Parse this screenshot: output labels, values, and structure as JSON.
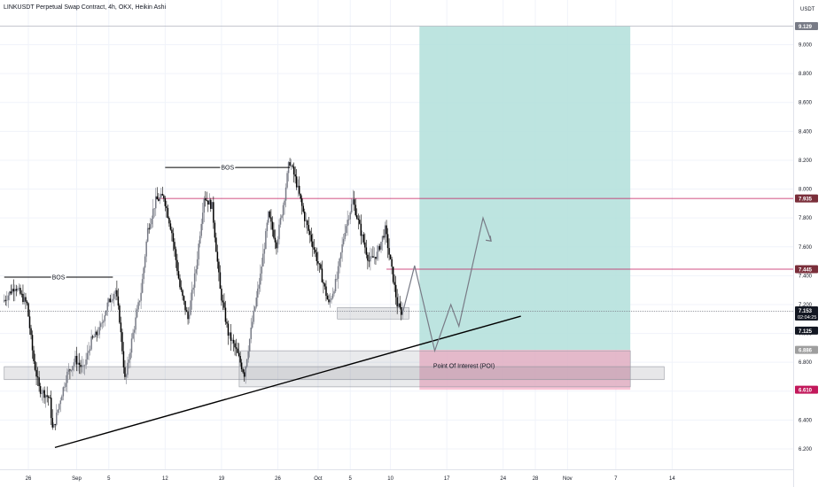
{
  "header": {
    "title": "LINKUSDT Perpetual Swap Contract, 4h, OKX, Heikin Ashi",
    "currency": "USDT"
  },
  "chart_data": {
    "type": "candlestick",
    "symbol": "LINKUSDT Perpetual Swap Contract",
    "interval": "4h",
    "exchange": "OKX",
    "candle_style": "Heikin Ashi",
    "ylim": [
      6.12,
      9.2
    ],
    "y_ticks": [
      "9.000",
      "8.800",
      "8.600",
      "8.400",
      "8.200",
      "8.000",
      "7.800",
      "7.600",
      "7.400",
      "7.200",
      "7.000",
      "6.800",
      "6.600",
      "6.400",
      "6.200"
    ],
    "x_ticks": [
      {
        "label": "26",
        "day": 0
      },
      {
        "label": "Sep",
        "day": 6
      },
      {
        "label": "5",
        "day": 10
      },
      {
        "label": "12",
        "day": 17
      },
      {
        "label": "19",
        "day": 24
      },
      {
        "label": "26",
        "day": 31
      },
      {
        "label": "Oct",
        "day": 36
      },
      {
        "label": "5",
        "day": 40
      },
      {
        "label": "10",
        "day": 45
      },
      {
        "label": "17",
        "day": 52
      },
      {
        "label": "24",
        "day": 59
      },
      {
        "label": "28",
        "day": 63
      },
      {
        "label": "Nov",
        "day": 67
      },
      {
        "label": "7",
        "day": 73
      },
      {
        "label": "14",
        "day": 80
      }
    ],
    "price_path": [
      {
        "day": -3,
        "price": 7.22
      },
      {
        "day": -1.5,
        "price": 7.33
      },
      {
        "day": 0,
        "price": 7.2
      },
      {
        "day": 0.8,
        "price": 6.82
      },
      {
        "day": 1.5,
        "price": 6.62
      },
      {
        "day": 2.8,
        "price": 6.55
      },
      {
        "day": 3.2,
        "price": 6.32
      },
      {
        "day": 4.2,
        "price": 6.56
      },
      {
        "day": 5,
        "price": 6.72
      },
      {
        "day": 6,
        "price": 6.82
      },
      {
        "day": 7,
        "price": 6.75
      },
      {
        "day": 8,
        "price": 6.95
      },
      {
        "day": 9,
        "price": 7.02
      },
      {
        "day": 10,
        "price": 7.2
      },
      {
        "day": 11,
        "price": 7.3
      },
      {
        "day": 11.5,
        "price": 7.1
      },
      {
        "day": 12.2,
        "price": 6.66
      },
      {
        "day": 13,
        "price": 6.95
      },
      {
        "day": 14.2,
        "price": 7.3
      },
      {
        "day": 15,
        "price": 7.72
      },
      {
        "day": 16,
        "price": 7.92
      },
      {
        "day": 17,
        "price": 7.95
      },
      {
        "day": 18,
        "price": 7.7
      },
      {
        "day": 19,
        "price": 7.32
      },
      {
        "day": 20,
        "price": 7.1
      },
      {
        "day": 21,
        "price": 7.45
      },
      {
        "day": 22,
        "price": 7.95
      },
      {
        "day": 23,
        "price": 7.88
      },
      {
        "day": 24,
        "price": 7.3
      },
      {
        "day": 25,
        "price": 7.0
      },
      {
        "day": 26,
        "price": 6.88
      },
      {
        "day": 27,
        "price": 6.72
      },
      {
        "day": 28,
        "price": 7.08
      },
      {
        "day": 29,
        "price": 7.4
      },
      {
        "day": 30,
        "price": 7.82
      },
      {
        "day": 31,
        "price": 7.62
      },
      {
        "day": 32,
        "price": 7.95
      },
      {
        "day": 32.6,
        "price": 8.2
      },
      {
        "day": 33.4,
        "price": 8.06
      },
      {
        "day": 34.5,
        "price": 7.8
      },
      {
        "day": 35.5,
        "price": 7.62
      },
      {
        "day": 36.5,
        "price": 7.42
      },
      {
        "day": 37.5,
        "price": 7.2
      },
      {
        "day": 38.5,
        "price": 7.38
      },
      {
        "day": 39.5,
        "price": 7.72
      },
      {
        "day": 40.5,
        "price": 7.92
      },
      {
        "day": 41.5,
        "price": 7.7
      },
      {
        "day": 42.5,
        "price": 7.5
      },
      {
        "day": 43.5,
        "price": 7.55
      },
      {
        "day": 44.5,
        "price": 7.72
      },
      {
        "day": 45.5,
        "price": 7.38
      },
      {
        "day": 46,
        "price": 7.2
      },
      {
        "day": 46.5,
        "price": 7.15
      }
    ],
    "levels": [
      {
        "label": "7.935",
        "price": 7.935,
        "color": "#c2185b"
      },
      {
        "label": "7.445",
        "price": 7.445,
        "color": "#c2185b"
      },
      {
        "label": "7.153",
        "price": 7.153,
        "color": "#787b86"
      }
    ],
    "axis_labels": [
      {
        "label": "9.129",
        "price": 9.129,
        "bg": "#787b86",
        "fg": "#ffffff"
      },
      {
        "label": "7.935",
        "price": 7.935,
        "bg": "#7a2e3a",
        "fg": "#ffffff"
      },
      {
        "label": "7.445",
        "price": 7.445,
        "bg": "#7a2e3a",
        "fg": "#ffffff"
      },
      {
        "label": "7.153",
        "price": 7.16,
        "bg": "#131722",
        "fg": "#ffffff",
        "sub": "02:04:25"
      },
      {
        "label": "7.125",
        "price": 7.02,
        "bg": "#131722",
        "fg": "#ffffff"
      },
      {
        "label": "6.886",
        "price": 6.886,
        "bg": "#9e9e9e",
        "fg": "#ffffff"
      },
      {
        "label": "6.610",
        "price": 6.61,
        "bg": "#c2185b",
        "fg": "#ffffff"
      }
    ],
    "annotations": [
      {
        "text": "BOS",
        "x1": -3,
        "x2": 10.5,
        "price": 7.39
      },
      {
        "text": "BOS",
        "x1": 17,
        "x2": 32.5,
        "price": 8.15
      },
      {
        "text": "Point Of Interest (POI)",
        "day": 50.5,
        "price": 6.78
      }
    ],
    "trendline": {
      "from": {
        "day": 3.3,
        "price": 6.21
      },
      "to": {
        "day": 61.2,
        "price": 7.12
      }
    },
    "long_position": {
      "entry": 6.886,
      "target": 9.129,
      "stop": 6.61,
      "from_day": 48.6,
      "to_day": 74.8,
      "profit_color": "#b2dfdb",
      "loss_color": "#f8bbd0"
    },
    "poi_zone": {
      "from_day": 26.2,
      "to_day": 74.8,
      "top": 6.88,
      "bottom": 6.63
    },
    "demand_zone": {
      "from_day": -3,
      "to_day": 79,
      "top": 6.77,
      "bottom": 6.68
    },
    "small_zone": {
      "from_day": 38.4,
      "to_day": 47.3,
      "top": 7.18,
      "bottom": 7.1
    },
    "projection": [
      {
        "day": 46.5,
        "price": 7.14
      },
      {
        "day": 48,
        "price": 7.47
      },
      {
        "day": 50.5,
        "price": 6.88
      },
      {
        "day": 52.5,
        "price": 7.2
      },
      {
        "day": 53.5,
        "price": 7.05
      },
      {
        "day": 56.5,
        "price": 7.8
      },
      {
        "day": 57.5,
        "price": 7.64
      }
    ],
    "colors": {
      "up": "#787b86",
      "down": "#000000",
      "grid": "#f0f3fa",
      "axis_text": "#131722"
    }
  }
}
